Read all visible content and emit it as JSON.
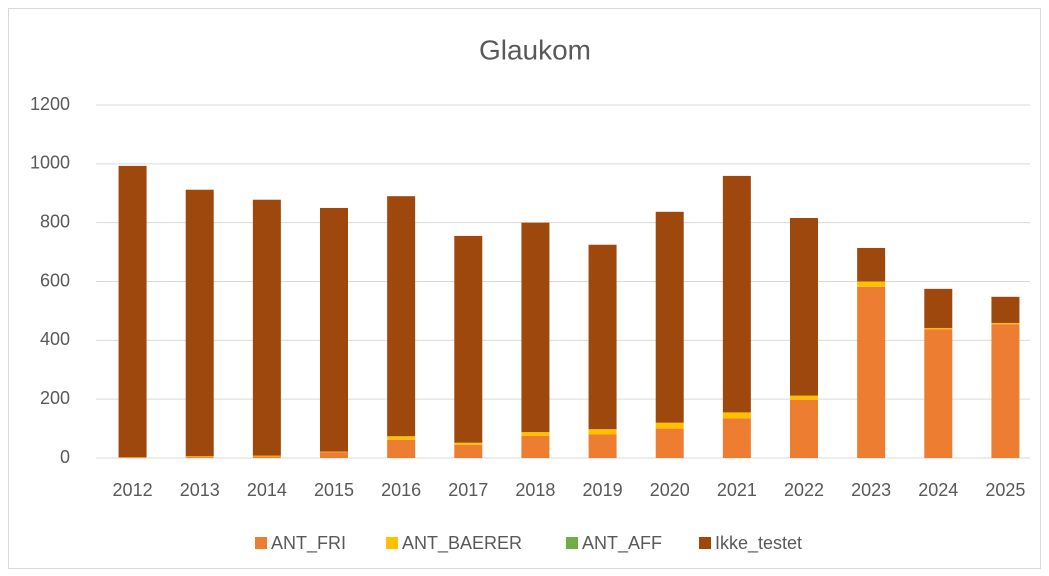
{
  "chart_data": {
    "type": "bar",
    "stacked": true,
    "title": "Glaukom",
    "categories": [
      "2012",
      "2013",
      "2014",
      "2015",
      "2016",
      "2017",
      "2018",
      "2019",
      "2020",
      "2021",
      "2022",
      "2023",
      "2024",
      "2025"
    ],
    "series": [
      {
        "name": "ANT_FRI",
        "color": "#ed7d31",
        "values": [
          2,
          3,
          5,
          20,
          62,
          45,
          75,
          80,
          100,
          135,
          198,
          582,
          438,
          455
        ]
      },
      {
        "name": "ANT_BAERER",
        "color": "#ffc000",
        "values": [
          1,
          3,
          3,
          2,
          12,
          7,
          13,
          18,
          20,
          20,
          14,
          18,
          4,
          4
        ]
      },
      {
        "name": "ANT_AFF",
        "color": "#70ad47",
        "values": [
          0,
          0,
          0,
          0,
          0,
          0,
          0,
          0,
          0,
          0,
          0,
          0,
          0,
          0
        ]
      },
      {
        "name": "Ikke_testet",
        "color": "#9e480e",
        "values": [
          990,
          906,
          870,
          828,
          816,
          703,
          712,
          627,
          717,
          804,
          604,
          114,
          133,
          89
        ]
      }
    ],
    "ylim": [
      0,
      1200
    ],
    "yticks": [
      0,
      200,
      400,
      600,
      800,
      1000,
      1200
    ],
    "grid": true,
    "legend": "bottom"
  }
}
